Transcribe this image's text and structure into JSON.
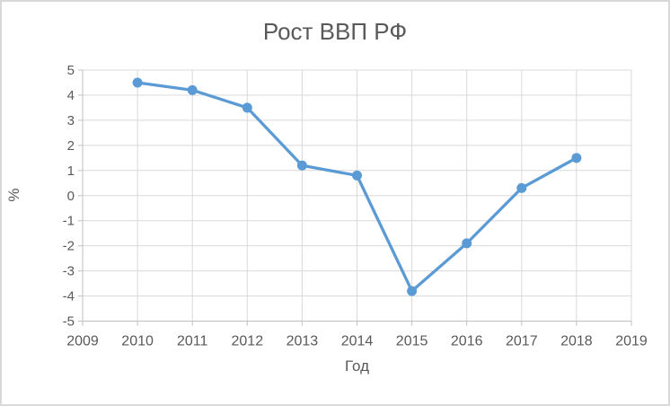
{
  "window": {
    "background": "#FFFFFF",
    "border_color": "#D9D9D9"
  },
  "chart_data": {
    "type": "line",
    "title": "Рост ВВП РФ",
    "xlabel": "Год",
    "ylabel": "%",
    "x": [
      2010,
      2011,
      2012,
      2013,
      2014,
      2015,
      2016,
      2017,
      2018
    ],
    "values": [
      4.5,
      4.2,
      3.5,
      1.2,
      0.8,
      -3.8,
      -1.9,
      0.3,
      1.5
    ],
    "xlim": [
      2009,
      2019
    ],
    "ylim": [
      -5,
      5
    ],
    "x_ticks": [
      2009,
      2010,
      2011,
      2012,
      2013,
      2014,
      2015,
      2016,
      2017,
      2018,
      2019
    ],
    "y_ticks": [
      5,
      4,
      3,
      2,
      1,
      0,
      -1,
      -2,
      -3,
      -4,
      -5
    ],
    "grid": true,
    "legend": false,
    "marker": "circle",
    "colors": {
      "series": "#5B9BD5",
      "text": "#595959",
      "gridline": "#D9D9D9",
      "axis": "#BFBFBF"
    }
  }
}
